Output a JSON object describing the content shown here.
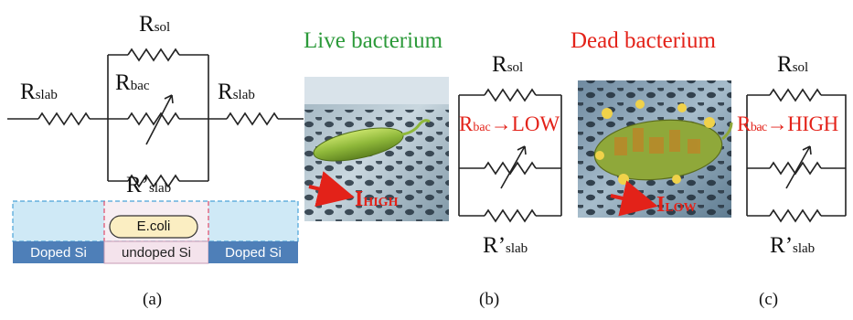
{
  "panel_a": {
    "r_sol": "R",
    "r_sol_sub": "sol",
    "r_bac": "R",
    "r_bac_sub": "bac",
    "r_slab_left": "R",
    "r_slab_left_sub": "slab",
    "r_slab_right": "R",
    "r_slab_right_sub": "slab",
    "r_slab_prime": "R",
    "r_slab_prime_mark": "’",
    "r_slab_prime_sub": "slab",
    "ecoli": "E.coli",
    "doped_left": "Doped Si",
    "undoped": "undoped Si",
    "doped_right": "Doped Si",
    "caption": "(a)"
  },
  "panel_b": {
    "title": "Live bacterium",
    "current": "I",
    "current_sub": "HIGH",
    "r_sol": "R",
    "r_sol_sub": "sol",
    "r_bac": "R",
    "r_bac_sub": "bac",
    "r_bac_state": "→LOW",
    "r_slab_prime": "R",
    "r_slab_prime_mark": "’",
    "r_slab_prime_sub": "slab",
    "caption": "(b)"
  },
  "panel_c": {
    "title": "Dead bacterium",
    "current": "I",
    "current_sub": "LOW",
    "r_sol": "R",
    "r_sol_sub": "sol",
    "r_bac": "R",
    "r_bac_sub": "bac",
    "r_bac_state": "→HIGH",
    "r_slab_prime": "R",
    "r_slab_prime_mark": "’",
    "r_slab_prime_sub": "slab",
    "caption": "(c)"
  },
  "colors": {
    "red": "#e32219",
    "green": "#2c9a3a",
    "blue": "#4e7fb8",
    "light_blue": "#cfe9f6",
    "pink": "#f4e3ec"
  }
}
